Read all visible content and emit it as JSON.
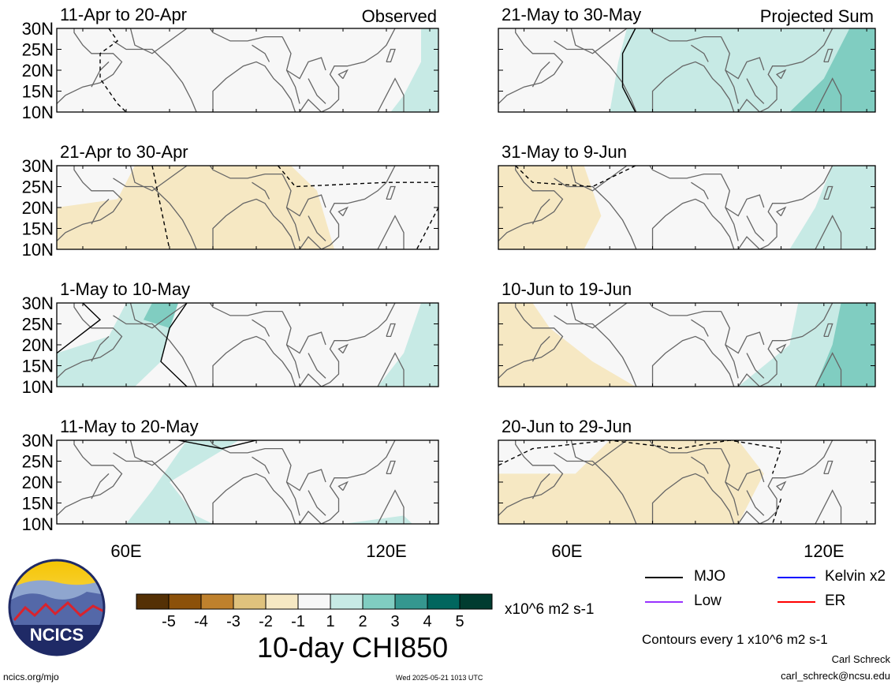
{
  "labels": {
    "observed": "Observed",
    "projected": "Projected Sum",
    "units": "x10^6 m2 s-1",
    "title": "10-day CHI850",
    "contours": "Contours every 1 x10^6 m2 s-1",
    "author": "Carl Schreck",
    "email": "carl_schreck@ncsu.edu",
    "url": "ncics.org/mjo",
    "timestamp": "Wed 2025-05-21 1013 UTC",
    "logo": "NCICS"
  },
  "legend_lines": [
    {
      "name": "MJO",
      "color": "#000000"
    },
    {
      "name": "Kelvin x2",
      "color": "#0000ff"
    },
    {
      "name": "Low",
      "color": "#9933ff"
    },
    {
      "name": "ER",
      "color": "#ff0000"
    }
  ],
  "colorbar": {
    "colors": [
      "#543005",
      "#8c510a",
      "#bf812d",
      "#dfc27d",
      "#f6e8c3",
      "#f7f7f7",
      "#c7eae5",
      "#80cdc1",
      "#35978f",
      "#01665e",
      "#003c30"
    ],
    "tick_labels": [
      "-5",
      "-4",
      "-3",
      "-2",
      "-1",
      "1",
      "2",
      "3",
      "4",
      "5"
    ]
  },
  "chart_data": [
    {
      "type": "heatmap",
      "title": "11-Apr to 20-Apr",
      "annotation": "Observed",
      "x_ticks": [
        "60E",
        "120E"
      ],
      "y_ticks": [
        "10N",
        "15N",
        "20N",
        "25N",
        "30N"
      ],
      "ylim": [
        10,
        30
      ]
    },
    {
      "type": "heatmap",
      "title": "21-May to 30-May",
      "annotation": "Projected Sum",
      "x_ticks": [
        "60E",
        "120E"
      ],
      "y_ticks": [
        "10N",
        "15N",
        "20N",
        "25N",
        "30N"
      ],
      "ylim": [
        10,
        30
      ]
    },
    {
      "type": "heatmap",
      "title": "21-Apr to 30-Apr",
      "x_ticks": [
        "60E",
        "120E"
      ],
      "y_ticks": [
        "10N",
        "15N",
        "20N",
        "25N",
        "30N"
      ],
      "ylim": [
        10,
        30
      ]
    },
    {
      "type": "heatmap",
      "title": "31-May to 9-Jun",
      "x_ticks": [
        "60E",
        "120E"
      ],
      "y_ticks": [
        "10N",
        "15N",
        "20N",
        "25N",
        "30N"
      ],
      "ylim": [
        10,
        30
      ]
    },
    {
      "type": "heatmap",
      "title": "1-May to 10-May",
      "x_ticks": [
        "60E",
        "120E"
      ],
      "y_ticks": [
        "10N",
        "15N",
        "20N",
        "25N",
        "30N"
      ],
      "ylim": [
        10,
        30
      ]
    },
    {
      "type": "heatmap",
      "title": "10-Jun to 19-Jun",
      "x_ticks": [
        "60E",
        "120E"
      ],
      "y_ticks": [
        "10N",
        "15N",
        "20N",
        "25N",
        "30N"
      ],
      "ylim": [
        10,
        30
      ]
    },
    {
      "type": "heatmap",
      "title": "11-May to 20-May",
      "x_ticks": [
        "60E",
        "120E"
      ],
      "y_ticks": [
        "10N",
        "15N",
        "20N",
        "25N",
        "30N"
      ],
      "ylim": [
        10,
        30
      ]
    },
    {
      "type": "heatmap",
      "title": "20-Jun to 29-Jun",
      "x_ticks": [
        "60E",
        "120E"
      ],
      "y_ticks": [
        "10N",
        "15N",
        "20N",
        "25N",
        "30N"
      ],
      "ylim": [
        10,
        30
      ]
    }
  ]
}
